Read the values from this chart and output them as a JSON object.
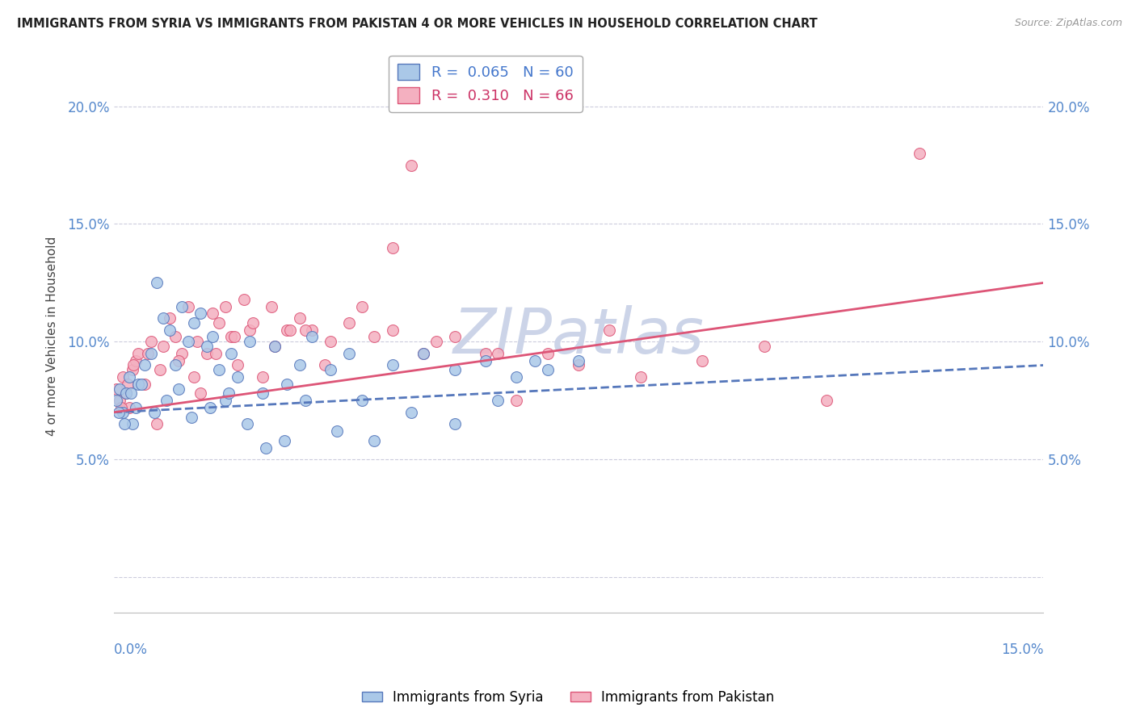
{
  "title": "IMMIGRANTS FROM SYRIA VS IMMIGRANTS FROM PAKISTAN 4 OR MORE VEHICLES IN HOUSEHOLD CORRELATION CHART",
  "source": "Source: ZipAtlas.com",
  "ylabel": "4 or more Vehicles in Household",
  "xlim": [
    0.0,
    15.0
  ],
  "ylim": [
    -1.5,
    22.0
  ],
  "yticks": [
    0.0,
    5.0,
    10.0,
    15.0,
    20.0
  ],
  "ytick_labels": [
    "",
    "5.0%",
    "10.0%",
    "15.0%",
    "20.0%"
  ],
  "syria_color": "#aac8e8",
  "pakistan_color": "#f4b0c0",
  "syria_line_color": "#5577bb",
  "pakistan_line_color": "#dd5577",
  "watermark": "ZIPatlas",
  "watermark_color": "#ccd4e8",
  "syria_trend_start": 7.0,
  "syria_trend_end": 9.0,
  "pakistan_trend_start": 7.0,
  "pakistan_trend_end": 12.5,
  "syria_scatter_x": [
    0.05,
    0.1,
    0.15,
    0.2,
    0.25,
    0.3,
    0.35,
    0.4,
    0.5,
    0.6,
    0.7,
    0.8,
    0.9,
    1.0,
    1.1,
    1.2,
    1.3,
    1.4,
    1.5,
    1.6,
    1.7,
    1.8,
    1.9,
    2.0,
    2.2,
    2.4,
    2.6,
    2.8,
    3.0,
    3.2,
    3.5,
    3.8,
    4.0,
    4.5,
    5.0,
    5.5,
    6.0,
    6.5,
    7.0,
    7.5,
    0.08,
    0.18,
    0.28,
    0.45,
    0.65,
    0.85,
    1.05,
    1.25,
    1.55,
    1.85,
    2.15,
    2.45,
    2.75,
    3.1,
    3.6,
    4.2,
    4.8,
    5.5,
    6.2,
    6.8
  ],
  "syria_scatter_y": [
    7.5,
    8.0,
    7.0,
    7.8,
    8.5,
    6.5,
    7.2,
    8.2,
    9.0,
    9.5,
    12.5,
    11.0,
    10.5,
    9.0,
    11.5,
    10.0,
    10.8,
    11.2,
    9.8,
    10.2,
    8.8,
    7.5,
    9.5,
    8.5,
    10.0,
    7.8,
    9.8,
    8.2,
    9.0,
    10.2,
    8.8,
    9.5,
    7.5,
    9.0,
    9.5,
    8.8,
    9.2,
    8.5,
    8.8,
    9.2,
    7.0,
    6.5,
    7.8,
    8.2,
    7.0,
    7.5,
    8.0,
    6.8,
    7.2,
    7.8,
    6.5,
    5.5,
    5.8,
    7.5,
    6.2,
    5.8,
    7.0,
    6.5,
    7.5,
    9.2
  ],
  "pakistan_scatter_x": [
    0.05,
    0.1,
    0.15,
    0.2,
    0.25,
    0.3,
    0.35,
    0.4,
    0.5,
    0.6,
    0.7,
    0.8,
    0.9,
    1.0,
    1.1,
    1.2,
    1.3,
    1.4,
    1.5,
    1.6,
    1.7,
    1.8,
    1.9,
    2.0,
    2.1,
    2.2,
    2.4,
    2.6,
    2.8,
    3.0,
    3.2,
    3.5,
    3.8,
    4.0,
    4.2,
    4.5,
    5.0,
    5.5,
    6.0,
    6.5,
    7.0,
    8.0,
    9.5,
    10.5,
    11.5,
    13.0,
    0.12,
    0.22,
    0.32,
    0.55,
    0.75,
    1.05,
    1.35,
    1.65,
    1.95,
    2.25,
    2.55,
    2.85,
    3.4,
    4.5,
    5.2,
    6.2,
    7.5,
    8.5,
    4.8,
    3.1
  ],
  "pakistan_scatter_y": [
    8.0,
    7.5,
    8.5,
    7.8,
    7.2,
    8.8,
    9.2,
    9.5,
    8.2,
    10.0,
    6.5,
    9.8,
    11.0,
    10.2,
    9.5,
    11.5,
    8.5,
    7.8,
    9.5,
    11.2,
    10.8,
    11.5,
    10.2,
    9.0,
    11.8,
    10.5,
    8.5,
    9.8,
    10.5,
    11.0,
    10.5,
    10.0,
    10.8,
    11.5,
    10.2,
    10.5,
    9.5,
    10.2,
    9.5,
    7.5,
    9.5,
    10.5,
    9.2,
    9.8,
    7.5,
    18.0,
    7.2,
    8.2,
    9.0,
    9.5,
    8.8,
    9.2,
    10.0,
    9.5,
    10.2,
    10.8,
    11.5,
    10.5,
    9.0,
    14.0,
    10.0,
    9.5,
    9.0,
    8.5,
    17.5,
    10.5
  ]
}
